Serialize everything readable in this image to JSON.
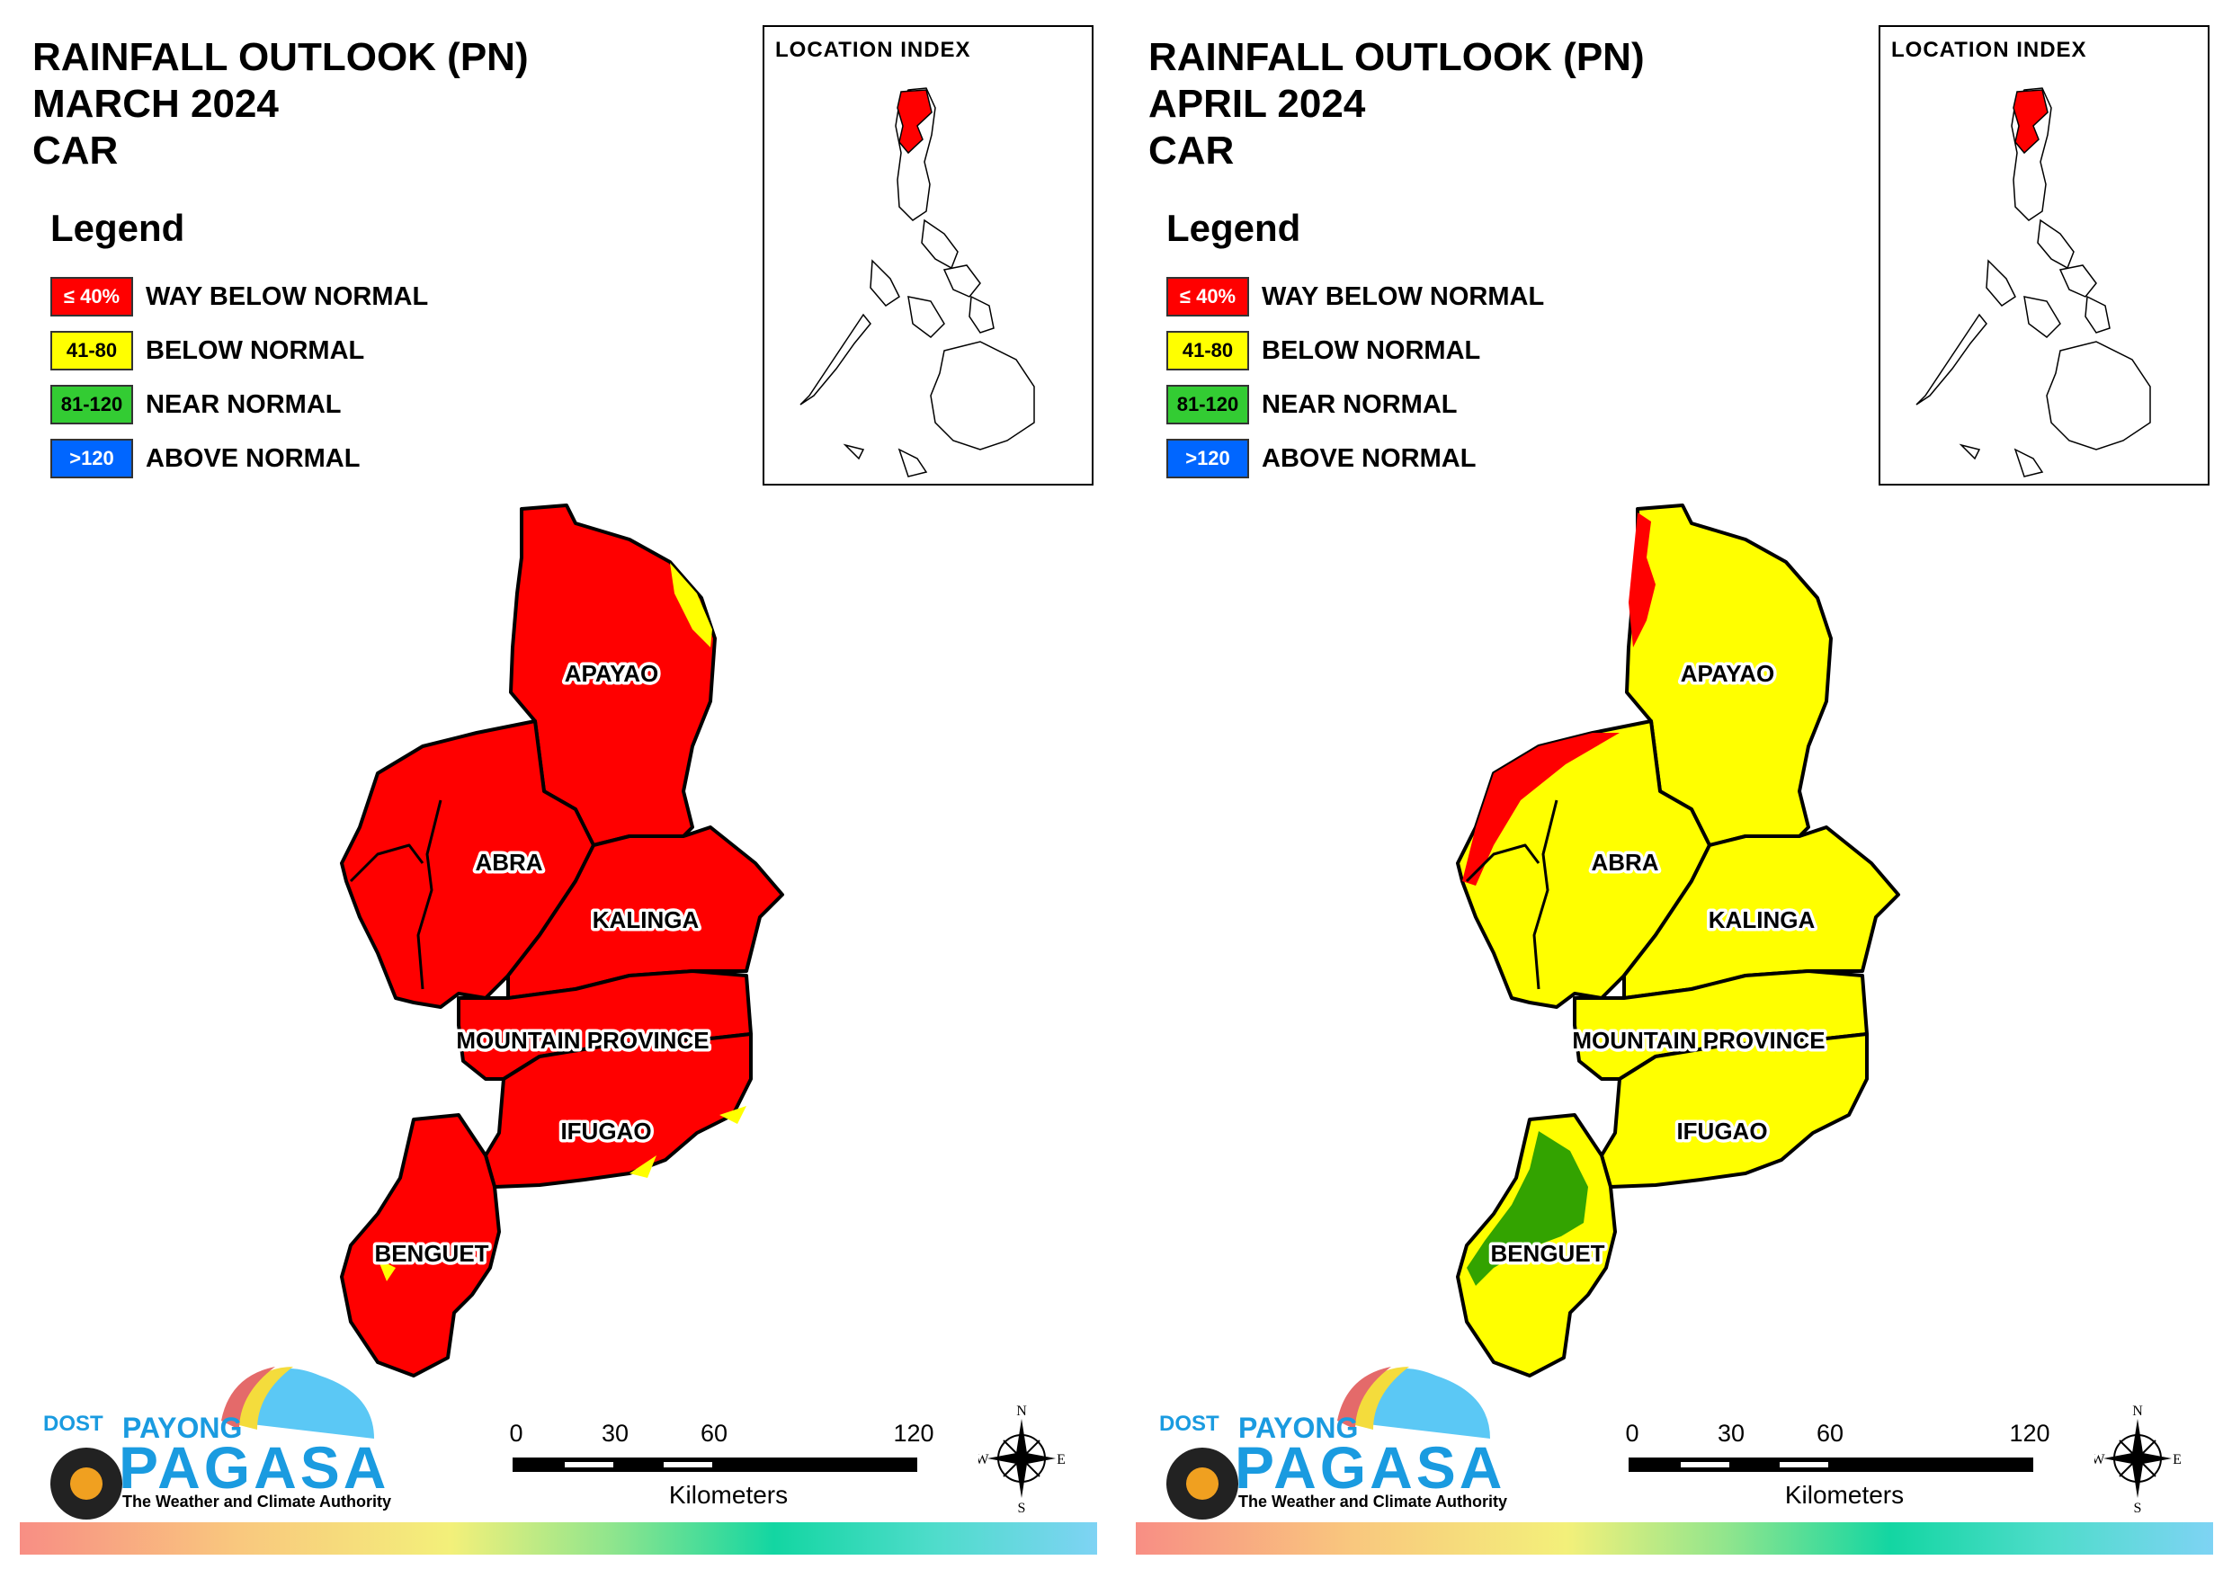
{
  "legend": {
    "heading": "Legend",
    "items": [
      {
        "range": "≤ 40%",
        "label": "WAY BELOW NORMAL",
        "color": "#ff0000",
        "text_color": "#ffffff"
      },
      {
        "range": "41-80",
        "label": "BELOW NORMAL",
        "color": "#ffff00",
        "text_color": "#000000"
      },
      {
        "range": "81-120",
        "label": "NEAR NORMAL",
        "color": "#33cc33",
        "text_color": "#000000"
      },
      {
        "range": ">120",
        "label": "ABOVE NORMAL",
        "color": "#0066ff",
        "text_color": "#ffffff"
      }
    ]
  },
  "inset": {
    "title": "LOCATION INDEX",
    "highlight_color": "#ff0000"
  },
  "maps": [
    {
      "title_line1": "RAINFALL OUTLOOK (PN)",
      "title_line2": "MARCH 2024",
      "title_line3": "CAR",
      "dominant_category": "WAY BELOW NORMAL",
      "minor_category": "BELOW NORMAL",
      "base_color": "#ff0000",
      "accent_color": "#ffff00"
    },
    {
      "title_line1": "RAINFALL OUTLOOK (PN)",
      "title_line2": "APRIL 2024",
      "title_line3": "CAR",
      "dominant_category": "BELOW NORMAL",
      "minor_category": "WAY BELOW NORMAL",
      "third_category": "NEAR NORMAL",
      "base_color": "#ffff00",
      "accent_color": "#ff0000",
      "near_normal_color": "#33a300"
    }
  ],
  "provinces": {
    "apayao": "APAYAO",
    "abra": "ABRA",
    "kalinga": "KALINGA",
    "mountain_province": "MOUNTAIN PROVINCE",
    "ifugao": "IFUGAO",
    "benguet": "BENGUET"
  },
  "logo": {
    "dost": "DOST",
    "payong": "PAYONG",
    "pagasa": "PAGASA",
    "tagline": "The Weather and Climate Authority"
  },
  "scale": {
    "ticks": [
      "0",
      "30",
      "60",
      "120"
    ],
    "unit": "Kilometers"
  },
  "compass": {
    "n": "N",
    "s": "S",
    "e": "E",
    "w": "W"
  }
}
